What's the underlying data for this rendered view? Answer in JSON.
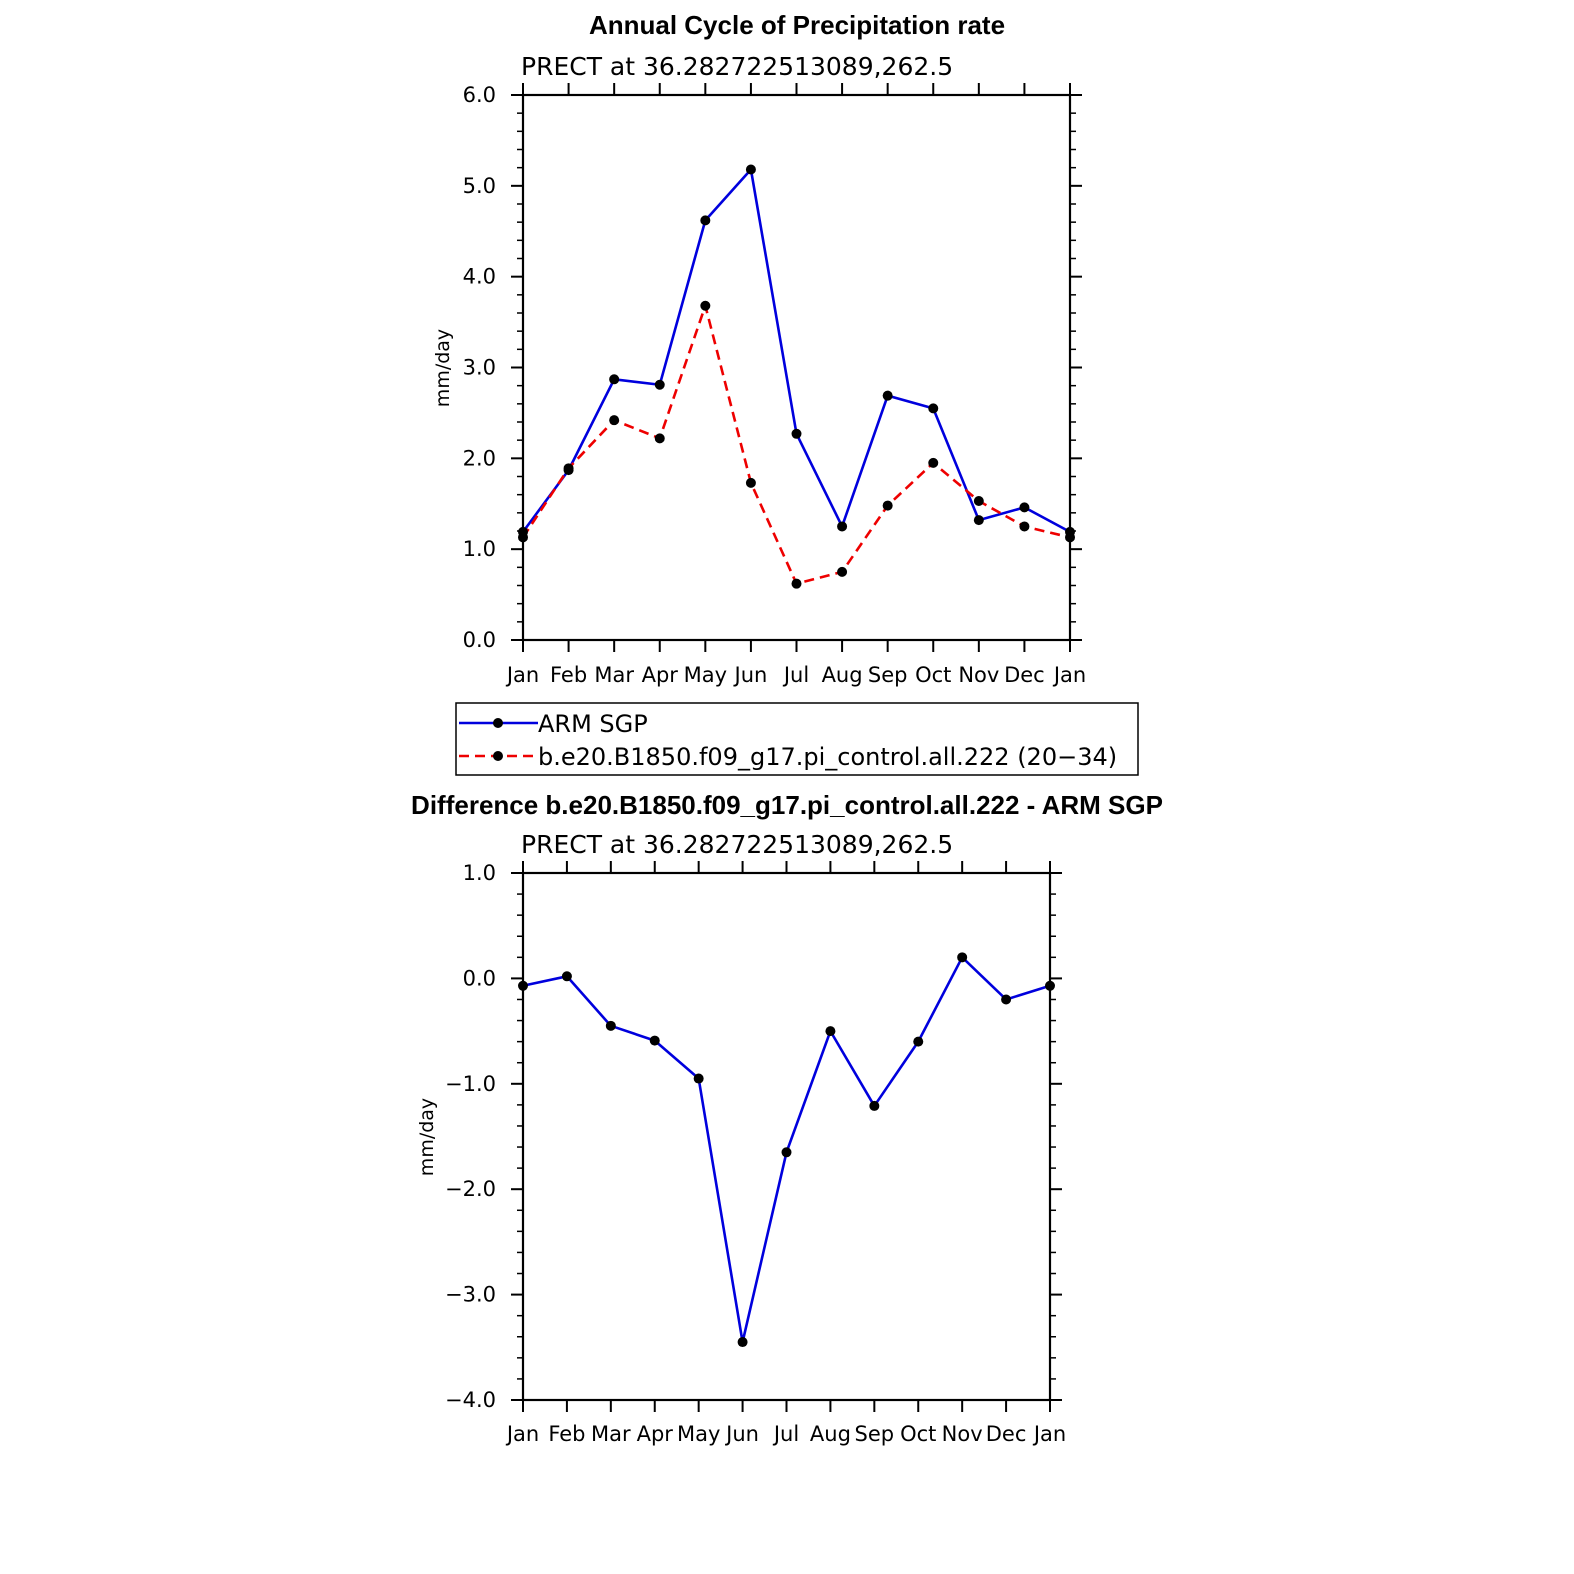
{
  "chart_data": [
    {
      "type": "line",
      "title": "Annual Cycle of Precipitation rate",
      "subtitle": "PRECT at 36.282722513089,262.5",
      "ylabel": "mm/day",
      "ylim": [
        0,
        6
      ],
      "yticks": [
        "0.0",
        "1.0",
        "2.0",
        "3.0",
        "4.0",
        "5.0",
        "6.0"
      ],
      "categories": [
        "Jan",
        "Feb",
        "Mar",
        "Apr",
        "May",
        "Jun",
        "Jul",
        "Aug",
        "Sep",
        "Oct",
        "Nov",
        "Dec",
        "Jan"
      ],
      "legend": "below",
      "series": [
        {
          "name": "ARM SGP",
          "color": "#0000dd",
          "dash": "solid",
          "values": [
            1.19,
            1.87,
            2.87,
            2.81,
            4.62,
            5.18,
            2.27,
            1.25,
            2.69,
            2.55,
            1.32,
            1.46,
            1.19
          ]
        },
        {
          "name": "b.e20.B1850.f09_g17.pi_control.all.222 (20−34)",
          "color": "#ee0000",
          "dash": "dashed",
          "values": [
            1.13,
            1.89,
            2.42,
            2.22,
            3.68,
            1.73,
            0.62,
            0.75,
            1.48,
            1.95,
            1.53,
            1.25,
            1.13
          ]
        }
      ]
    },
    {
      "type": "line",
      "title": "Difference b.e20.B1850.f09_g17.pi_control.all.222 - ARM SGP",
      "subtitle": "PRECT at 36.282722513089,262.5",
      "ylabel": "mm/day",
      "ylim": [
        -4,
        1
      ],
      "yticks": [
        "−4.0",
        "−3.0",
        "−2.0",
        "−1.0",
        "0.0",
        "1.0"
      ],
      "categories": [
        "Jan",
        "Feb",
        "Mar",
        "Apr",
        "May",
        "Jun",
        "Jul",
        "Aug",
        "Sep",
        "Oct",
        "Nov",
        "Dec",
        "Jan"
      ],
      "series": [
        {
          "color": "#0000dd",
          "dash": "solid",
          "values": [
            -0.07,
            0.02,
            -0.45,
            -0.59,
            -0.95,
            -3.45,
            -1.65,
            -0.5,
            -1.21,
            -0.6,
            0.2,
            -0.2,
            -0.07
          ]
        }
      ]
    }
  ]
}
